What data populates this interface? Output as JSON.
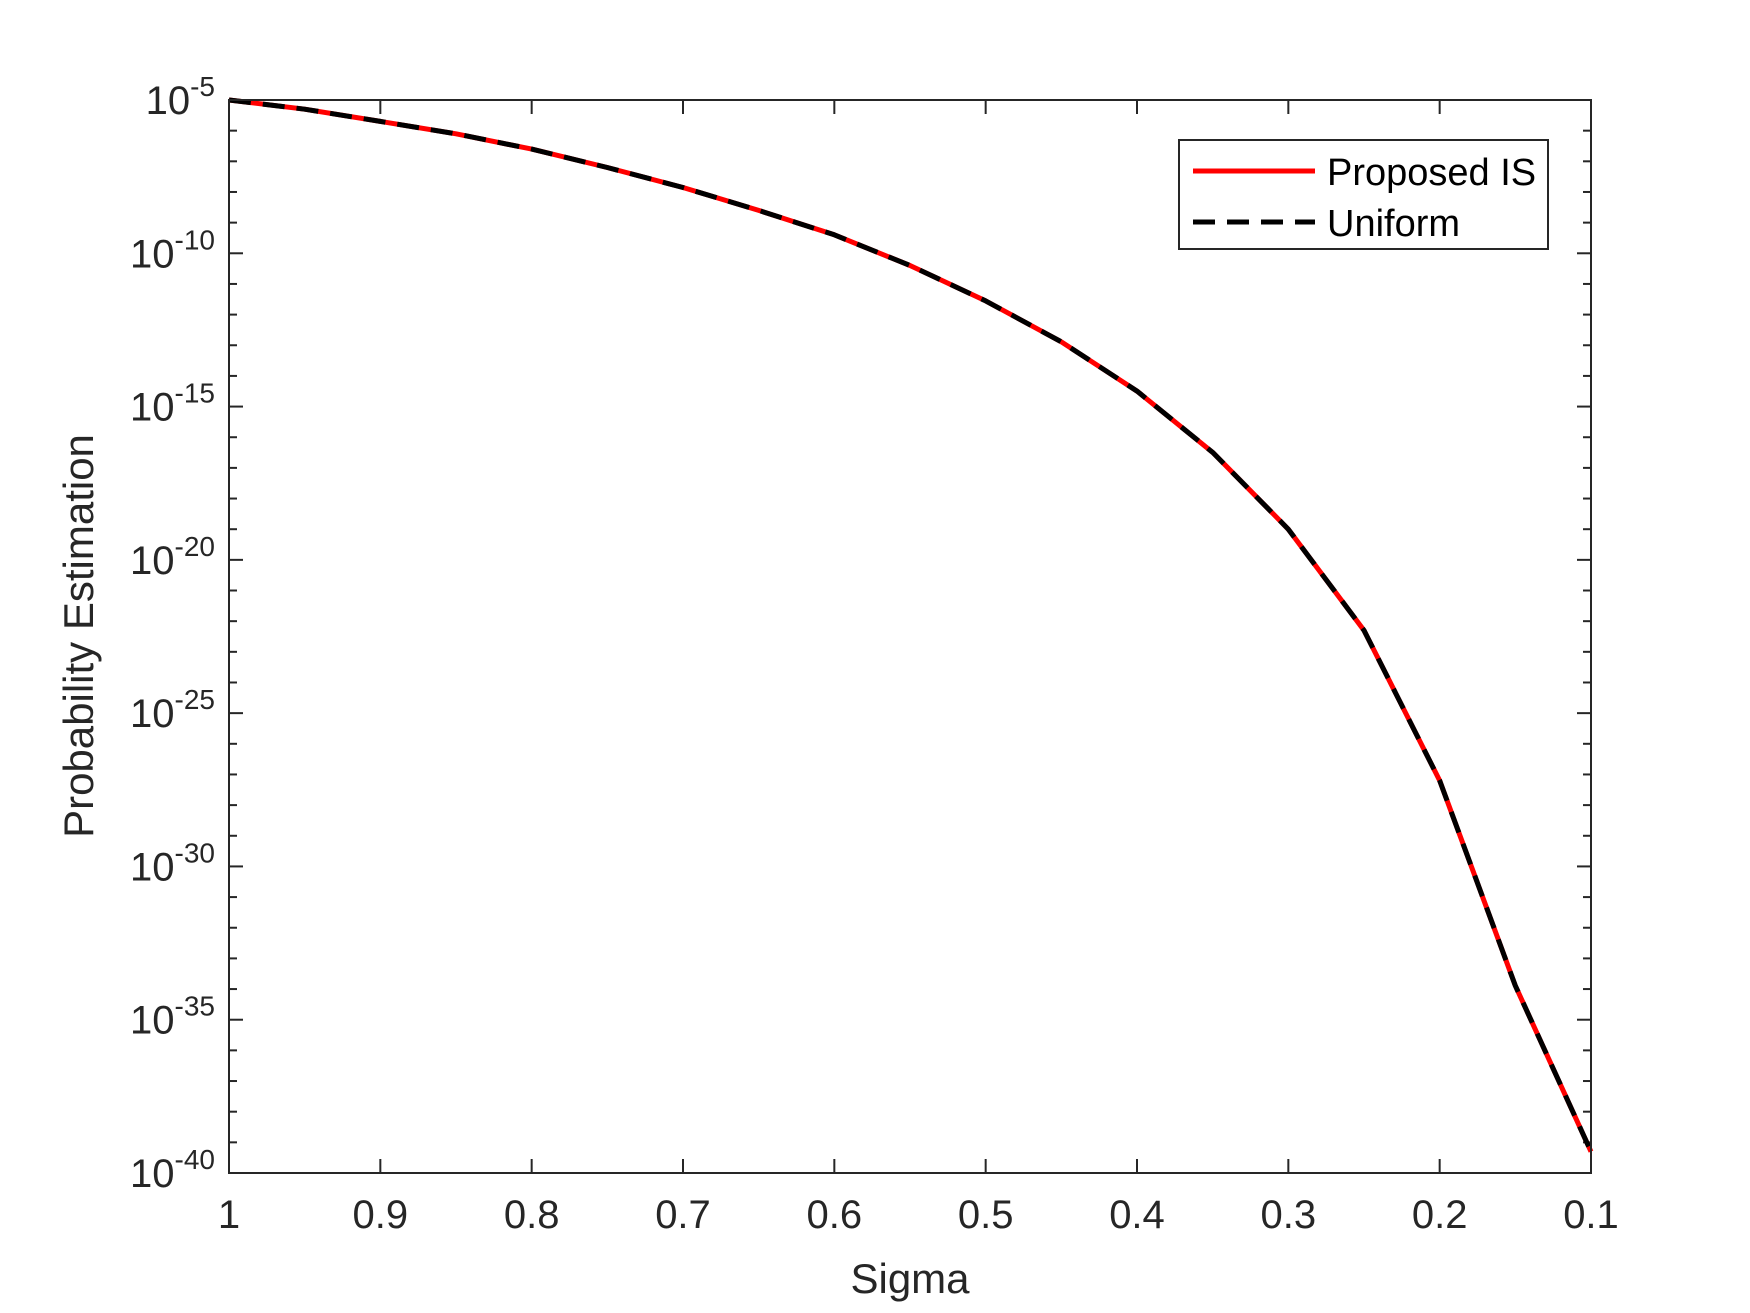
{
  "chart_data": {
    "type": "line",
    "xlabel": "Sigma",
    "ylabel": "Probability Estimation",
    "x_reversed": true,
    "y_scale": "log",
    "xlim": [
      0.1,
      1
    ],
    "ylim": [
      1e-40,
      1e-05
    ],
    "x_ticks": [
      "1",
      "0.9",
      "0.8",
      "0.7",
      "0.6",
      "0.5",
      "0.4",
      "0.3",
      "0.2",
      "0.1"
    ],
    "y_ticks": [
      {
        "base": "10",
        "exp": "-5"
      },
      {
        "base": "10",
        "exp": "-10"
      },
      {
        "base": "10",
        "exp": "-15"
      },
      {
        "base": "10",
        "exp": "-20"
      },
      {
        "base": "10",
        "exp": "-25"
      },
      {
        "base": "10",
        "exp": "-30"
      },
      {
        "base": "10",
        "exp": "-35"
      },
      {
        "base": "10",
        "exp": "-40"
      }
    ],
    "x": [
      1.0,
      0.95,
      0.9,
      0.85,
      0.8,
      0.75,
      0.7,
      0.65,
      0.6,
      0.55,
      0.5,
      0.45,
      0.4,
      0.35,
      0.3,
      0.25,
      0.2,
      0.15,
      0.1
    ],
    "series": [
      {
        "name": "Proposed IS",
        "color": "#ff0000",
        "style": "solid",
        "y": [
          1e-05,
          5e-06,
          2e-06,
          7.9e-07,
          2.5e-07,
          6.3e-08,
          1.4e-08,
          2.5e-09,
          4e-10,
          4e-11,
          2.8e-12,
          1.3e-13,
          3.2e-15,
          3.2e-17,
          1e-19,
          5e-23,
          6.3e-28,
          1.3e-34,
          5e-40
        ]
      },
      {
        "name": "Uniform",
        "color": "#000000",
        "style": "dashed",
        "y": [
          1e-05,
          5e-06,
          2e-06,
          7.9e-07,
          2.5e-07,
          6.3e-08,
          1.4e-08,
          2.5e-09,
          4e-10,
          4e-11,
          2.8e-12,
          1.3e-13,
          3.2e-15,
          3.2e-17,
          1e-19,
          5e-23,
          6.3e-28,
          1.3e-34,
          5e-40
        ]
      }
    ],
    "legend_position": "top-right",
    "grid": false
  }
}
